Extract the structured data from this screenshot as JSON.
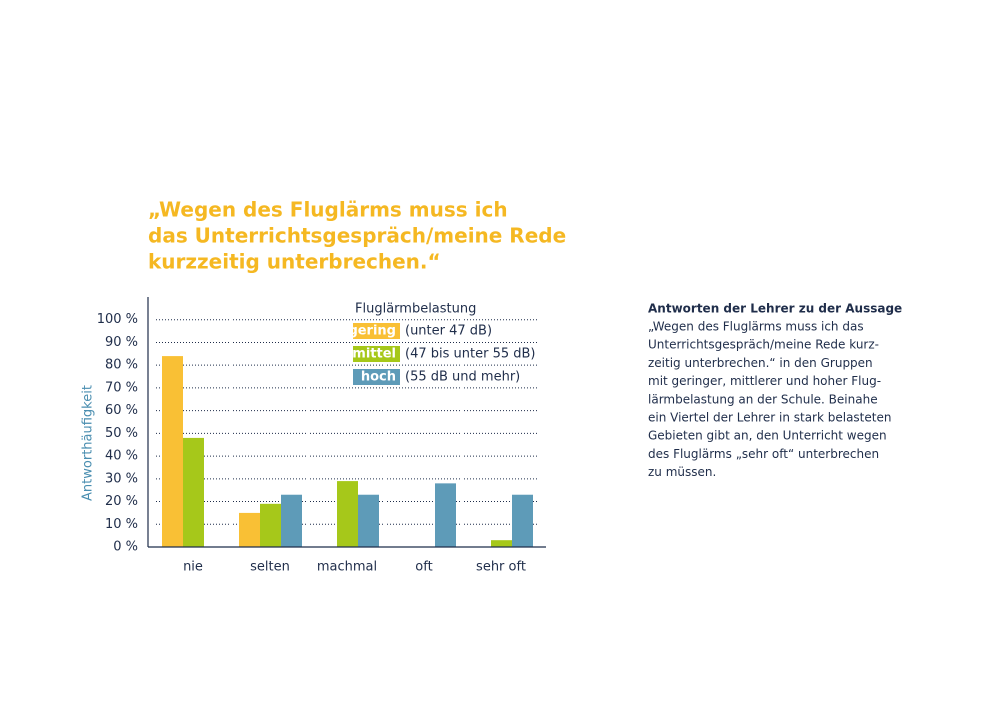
{
  "chart_data": {
    "type": "bar",
    "title": [
      "„Wegen des Fluglärms muss ich",
      "das Unterrichtsgespräch/meine Rede",
      "kurzzeitig unterbrechen.“"
    ],
    "y_label": "Antworthäufigkeit",
    "legend_title": "Fluglärmbelastung",
    "categories": [
      "nie",
      "selten",
      "machmal",
      "oft",
      "sehr oft"
    ],
    "series": [
      {
        "name": "gering",
        "description": "(unter 47 dB)",
        "color": "#f9c035",
        "values": [
          84,
          15,
          null,
          null,
          null
        ]
      },
      {
        "name": "mittel",
        "description": "(47 bis unter 55 dB)",
        "color": "#a6c81a",
        "values": [
          48,
          19,
          29,
          null,
          3
        ]
      },
      {
        "name": "hoch",
        "description": "(55 dB und mehr)",
        "color": "#5e9bb8",
        "values": [
          null,
          23,
          23,
          28,
          23
        ]
      }
    ],
    "ylim": [
      0,
      110
    ],
    "yticks": [
      {
        "value": 0,
        "label": "0 %"
      },
      {
        "value": 10,
        "label": "10 %"
      },
      {
        "value": 20,
        "label": "20 %"
      },
      {
        "value": 30,
        "label": "30 %"
      },
      {
        "value": 40,
        "label": "40 %"
      },
      {
        "value": 50,
        "label": "50 %"
      },
      {
        "value": 60,
        "label": "60 %"
      },
      {
        "value": 70,
        "label": "70 %"
      },
      {
        "value": 80,
        "label": "80 %"
      },
      {
        "value": 90,
        "label": "90 %"
      },
      {
        "value": 100,
        "label": "100 %"
      }
    ],
    "grid": true
  },
  "side_text": {
    "heading": "Antworten der Lehrer zu der Aussage",
    "lines": [
      "„Wegen des Fluglärms muss ich das",
      "Unterrichtsgespräch/meine Rede kurz-",
      "zeitig unterbrechen.“ in den Gruppen",
      "mit geringer, mittlerer und hoher Flug-",
      "lärmbelastung an der Schule. Beinahe",
      "ein Viertel der Lehrer in stark belasteten",
      "Gebieten gibt an, den Unterricht wegen",
      "des Fluglärms „sehr oft“ unterbrechen",
      "zu müssen."
    ]
  }
}
